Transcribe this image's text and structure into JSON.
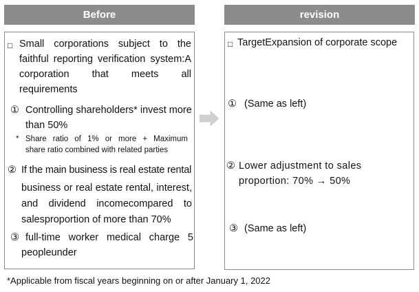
{
  "headers": {
    "before": "Before",
    "revision": "revision"
  },
  "before": {
    "intro_marker": "□",
    "intro_line1": "Small corporations subject to the",
    "intro_line2": "faithful reporting verification system:A",
    "intro_line3": "corporation that meets all",
    "intro_line4": "requirements",
    "item1_num": "①",
    "item1_line1": "Controlling shareholders* invest more",
    "item1_line2": "than 50%",
    "note_marker": "*",
    "note_line1": "Share ratio of 1% or more + Maximum",
    "note_line2": "share ratio combined with related parties",
    "item2_num": "②",
    "item2_line1": "If the main business is real estate rental",
    "item2_line2": "business or real estate rental, interest,",
    "item2_line3": "and dividend incomecompared to",
    "item2_line4": "salesproportion of more than 70%",
    "item3_num": "③",
    "item3_line1": "full-time worker medical charge 5",
    "item3_line2": "peopleunder"
  },
  "revision": {
    "intro_marker": "□",
    "intro": "TargetExpansion of corporate scope",
    "item1_num": "①",
    "item1": "(Same as left)",
    "item2_num": "②",
    "item2_line1": "Lower adjustment to sales",
    "item2_line2": "proportion: 70% → 50%",
    "item3_num": "③",
    "item3": "(Same as left)"
  },
  "footnote": "*Applicable from fiscal years beginning on or after January 1, 2022",
  "colors": {
    "header_bg": "#8c8c8c",
    "header_text": "#ffffff",
    "border": "#8a8a8a",
    "arrow": "#d0d0d0"
  },
  "icons": {
    "arrow": "right-arrow-icon"
  }
}
